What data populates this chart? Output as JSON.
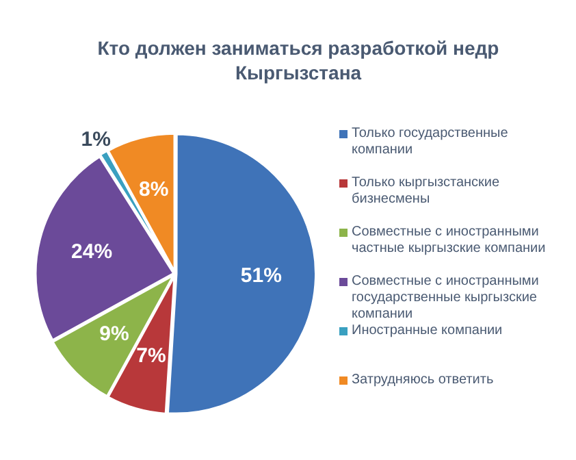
{
  "chart_data": {
    "type": "pie",
    "title": "Кто должен заниматься разработкой недр Кыргызстана",
    "categories": [
      "Только государственные компании",
      "Только кыргызстанские бизнесмены",
      "Совместные с иностранными частные кыргызские компании",
      "Совместные с иностранными государственные кыргызские компании",
      "Иностранные компании",
      "Затрудняюсь ответить"
    ],
    "values": [
      51,
      7,
      9,
      24,
      1,
      8
    ],
    "colors": [
      "#3f73b8",
      "#b8383a",
      "#8db44a",
      "#6b4a99",
      "#3aa0c0",
      "#f08a24"
    ],
    "value_labels": [
      "51%",
      "7%",
      "9%",
      "24%",
      "1%",
      "8%"
    ],
    "legend": "right"
  }
}
